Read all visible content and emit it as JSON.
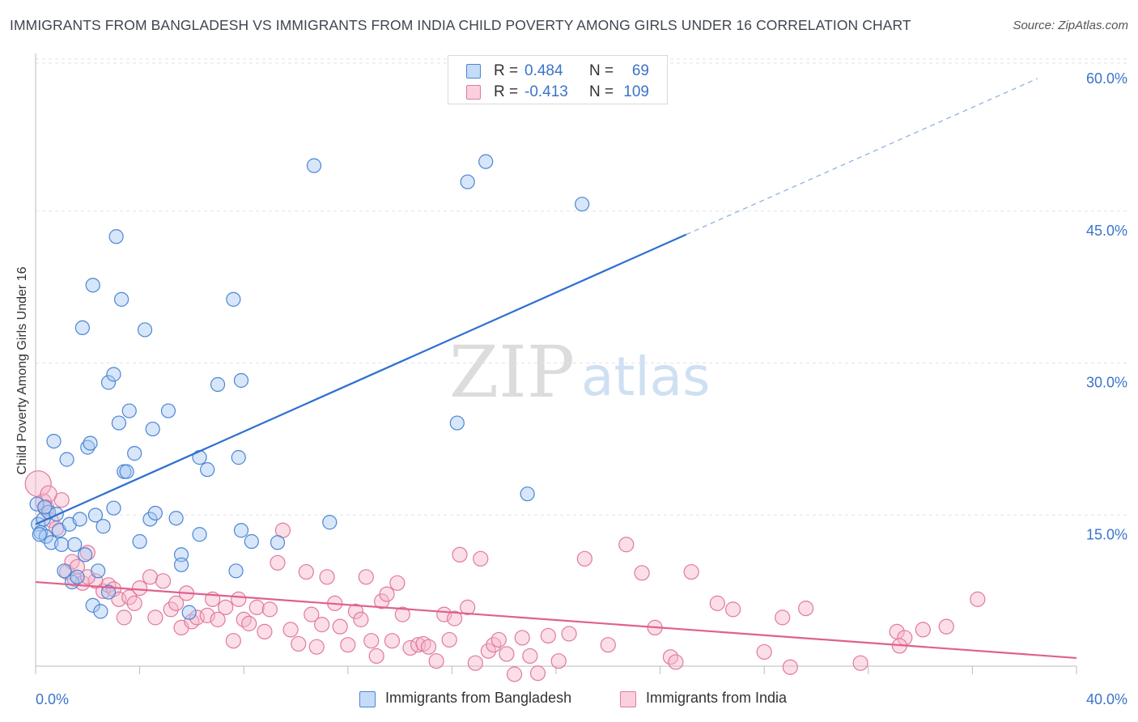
{
  "title": "IMMIGRANTS FROM BANGLADESH VS IMMIGRANTS FROM INDIA CHILD POVERTY AMONG GIRLS UNDER 16 CORRELATION CHART",
  "source": "Source: ZipAtlas.com",
  "watermark": {
    "zip": "ZIP",
    "atlas": "atlas"
  },
  "colors": {
    "bangladesh_fill": "#a9c8f2",
    "bangladesh_stroke": "#4a86d4",
    "bangladesh_line": "#2f6fcf",
    "india_fill": "#f7b6ca",
    "india_stroke": "#e07a9c",
    "india_line": "#e0608f",
    "axis_value": "#3a74c9",
    "grid": "#e3e3e3"
  },
  "legend_top": [
    {
      "r_label": "R =",
      "r_value": "0.484",
      "n_label": "N =",
      "n_value": "69"
    },
    {
      "r_label": "R =",
      "r_value": "-0.413",
      "n_label": "N =",
      "n_value": "109"
    }
  ],
  "chart_data": {
    "type": "scatter",
    "title": "IMMIGRANTS FROM BANGLADESH VS IMMIGRANTS FROM INDIA CHILD POVERTY AMONG GIRLS UNDER 16 CORRELATION CHART",
    "xlabel": "",
    "ylabel": "Child Poverty Among Girls Under 16",
    "xlim": [
      0,
      40
    ],
    "ylim": [
      0,
      63
    ],
    "x_tick_labels": [
      "0.0%",
      "40.0%"
    ],
    "y_ticks": [
      15,
      30,
      45,
      60
    ],
    "y_tick_labels": [
      "15.0%",
      "30.0%",
      "45.0%",
      "60.0%"
    ],
    "grid": true,
    "legend_position": "bottom",
    "series": [
      {
        "name": "Immigrants from Bangladesh",
        "r": 0.484,
        "n": 69,
        "trend": {
          "x0": 0,
          "y0": 16.0,
          "x1": 25.0,
          "y1": 44.6,
          "dashed_to_x": 38.5,
          "dashed_to_y": 60.0
        },
        "points": [
          [
            0.1,
            16.0
          ],
          [
            0.2,
            15.2
          ],
          [
            0.3,
            16.5
          ],
          [
            0.4,
            14.8
          ],
          [
            0.5,
            17.2
          ],
          [
            0.6,
            14.2
          ],
          [
            0.7,
            24.2
          ],
          [
            0.8,
            17.0
          ],
          [
            0.9,
            15.4
          ],
          [
            1.0,
            14.0
          ],
          [
            1.2,
            22.4
          ],
          [
            1.3,
            16.0
          ],
          [
            1.4,
            10.3
          ],
          [
            1.5,
            14.0
          ],
          [
            1.6,
            10.8
          ],
          [
            1.1,
            11.4
          ],
          [
            1.9,
            13.0
          ],
          [
            2.0,
            23.6
          ],
          [
            2.1,
            24.0
          ],
          [
            2.2,
            8.0
          ],
          [
            2.3,
            16.9
          ],
          [
            2.4,
            11.4
          ],
          [
            2.5,
            7.4
          ],
          [
            2.6,
            15.8
          ],
          [
            1.8,
            35.4
          ],
          [
            2.2,
            39.6
          ],
          [
            3.1,
            44.4
          ],
          [
            3.3,
            38.2
          ],
          [
            2.8,
            30.0
          ],
          [
            3.0,
            30.8
          ],
          [
            3.2,
            26.0
          ],
          [
            3.6,
            27.2
          ],
          [
            3.8,
            23.0
          ],
          [
            3.4,
            21.2
          ],
          [
            3.5,
            21.2
          ],
          [
            2.8,
            9.3
          ],
          [
            3.0,
            17.6
          ],
          [
            4.2,
            35.2
          ],
          [
            4.5,
            25.4
          ],
          [
            4.4,
            16.5
          ],
          [
            4.6,
            17.1
          ],
          [
            4.0,
            14.3
          ],
          [
            5.1,
            27.2
          ],
          [
            5.4,
            16.6
          ],
          [
            5.6,
            13.0
          ],
          [
            5.6,
            12.0
          ],
          [
            5.9,
            7.3
          ],
          [
            6.3,
            22.6
          ],
          [
            6.3,
            15.0
          ],
          [
            6.6,
            21.4
          ],
          [
            7.0,
            29.8
          ],
          [
            7.6,
            38.2
          ],
          [
            7.7,
            11.4
          ],
          [
            7.8,
            22.6
          ],
          [
            7.9,
            15.4
          ],
          [
            7.9,
            30.2
          ],
          [
            8.3,
            14.3
          ],
          [
            9.3,
            14.2
          ],
          [
            10.7,
            51.4
          ],
          [
            11.3,
            16.2
          ],
          [
            16.2,
            26.0
          ],
          [
            16.6,
            49.8
          ],
          [
            17.3,
            51.8
          ],
          [
            18.9,
            19.0
          ],
          [
            21.0,
            47.6
          ],
          [
            0.05,
            18.0
          ],
          [
            0.15,
            15.0
          ],
          [
            0.35,
            17.7
          ],
          [
            1.7,
            16.5
          ]
        ]
      },
      {
        "name": "Immigrants from India",
        "r": -0.413,
        "n": 109,
        "trend": {
          "x0": 0,
          "y0": 10.3,
          "x1": 40.0,
          "y1": 2.8
        },
        "points": [
          [
            0.1,
            20.0
          ],
          [
            0.3,
            18.2
          ],
          [
            0.4,
            17.6
          ],
          [
            0.6,
            16.4
          ],
          [
            0.8,
            15.6
          ],
          [
            1.0,
            18.4
          ],
          [
            1.2,
            11.3
          ],
          [
            1.4,
            12.3
          ],
          [
            1.5,
            10.6
          ],
          [
            1.6,
            11.8
          ],
          [
            1.8,
            10.2
          ],
          [
            2.0,
            13.2
          ],
          [
            2.3,
            10.4
          ],
          [
            2.6,
            9.4
          ],
          [
            2.8,
            10.0
          ],
          [
            3.0,
            9.6
          ],
          [
            3.2,
            8.6
          ],
          [
            3.4,
            6.8
          ],
          [
            3.6,
            8.8
          ],
          [
            3.8,
            8.2
          ],
          [
            4.0,
            9.7
          ],
          [
            4.4,
            10.8
          ],
          [
            4.6,
            6.8
          ],
          [
            4.9,
            10.4
          ],
          [
            5.2,
            7.6
          ],
          [
            5.4,
            8.2
          ],
          [
            5.6,
            5.8
          ],
          [
            5.8,
            9.2
          ],
          [
            6.0,
            6.4
          ],
          [
            6.2,
            6.8
          ],
          [
            6.6,
            7.0
          ],
          [
            6.8,
            8.6
          ],
          [
            7.0,
            6.6
          ],
          [
            7.3,
            7.8
          ],
          [
            7.6,
            4.5
          ],
          [
            7.8,
            8.6
          ],
          [
            8.0,
            6.6
          ],
          [
            8.2,
            6.2
          ],
          [
            8.5,
            7.8
          ],
          [
            8.8,
            5.4
          ],
          [
            9.0,
            7.6
          ],
          [
            9.3,
            12.2
          ],
          [
            9.5,
            15.4
          ],
          [
            9.8,
            5.6
          ],
          [
            10.1,
            4.2
          ],
          [
            10.4,
            11.3
          ],
          [
            10.6,
            7.1
          ],
          [
            10.8,
            3.9
          ],
          [
            11.0,
            6.1
          ],
          [
            11.2,
            10.8
          ],
          [
            11.5,
            8.2
          ],
          [
            11.7,
            5.9
          ],
          [
            12.0,
            4.1
          ],
          [
            12.3,
            7.4
          ],
          [
            12.5,
            6.6
          ],
          [
            12.7,
            10.8
          ],
          [
            12.9,
            4.5
          ],
          [
            13.1,
            3.0
          ],
          [
            13.3,
            8.4
          ],
          [
            13.5,
            9.1
          ],
          [
            13.7,
            4.5
          ],
          [
            13.9,
            10.2
          ],
          [
            14.1,
            7.1
          ],
          [
            14.4,
            3.8
          ],
          [
            14.7,
            4.1
          ],
          [
            14.9,
            4.2
          ],
          [
            15.1,
            3.9
          ],
          [
            15.4,
            2.5
          ],
          [
            15.7,
            7.1
          ],
          [
            15.9,
            4.6
          ],
          [
            16.1,
            6.7
          ],
          [
            16.3,
            13.0
          ],
          [
            16.6,
            7.8
          ],
          [
            16.9,
            2.3
          ],
          [
            17.1,
            12.6
          ],
          [
            17.4,
            3.5
          ],
          [
            17.6,
            4.1
          ],
          [
            17.8,
            4.6
          ],
          [
            18.1,
            3.2
          ],
          [
            18.4,
            1.2
          ],
          [
            18.7,
            4.8
          ],
          [
            19.0,
            3.0
          ],
          [
            19.3,
            1.3
          ],
          [
            19.7,
            5.0
          ],
          [
            20.1,
            2.5
          ],
          [
            20.5,
            5.2
          ],
          [
            21.1,
            12.6
          ],
          [
            22.0,
            4.1
          ],
          [
            22.7,
            14.0
          ],
          [
            23.3,
            11.2
          ],
          [
            23.8,
            5.8
          ],
          [
            24.4,
            2.9
          ],
          [
            24.6,
            2.4
          ],
          [
            25.2,
            11.3
          ],
          [
            26.2,
            8.2
          ],
          [
            26.8,
            7.6
          ],
          [
            28.0,
            3.4
          ],
          [
            28.7,
            6.8
          ],
          [
            29.0,
            1.9
          ],
          [
            29.6,
            7.7
          ],
          [
            31.7,
            2.3
          ],
          [
            33.1,
            5.4
          ],
          [
            33.4,
            4.8
          ],
          [
            33.2,
            4.0
          ],
          [
            34.1,
            5.6
          ],
          [
            35.0,
            5.9
          ],
          [
            36.2,
            8.6
          ],
          [
            0.5,
            19.0
          ],
          [
            2.0,
            10.8
          ]
        ]
      }
    ]
  },
  "legend_bottom": [
    {
      "label": "Immigrants from Bangladesh"
    },
    {
      "label": "Immigrants from India"
    }
  ]
}
